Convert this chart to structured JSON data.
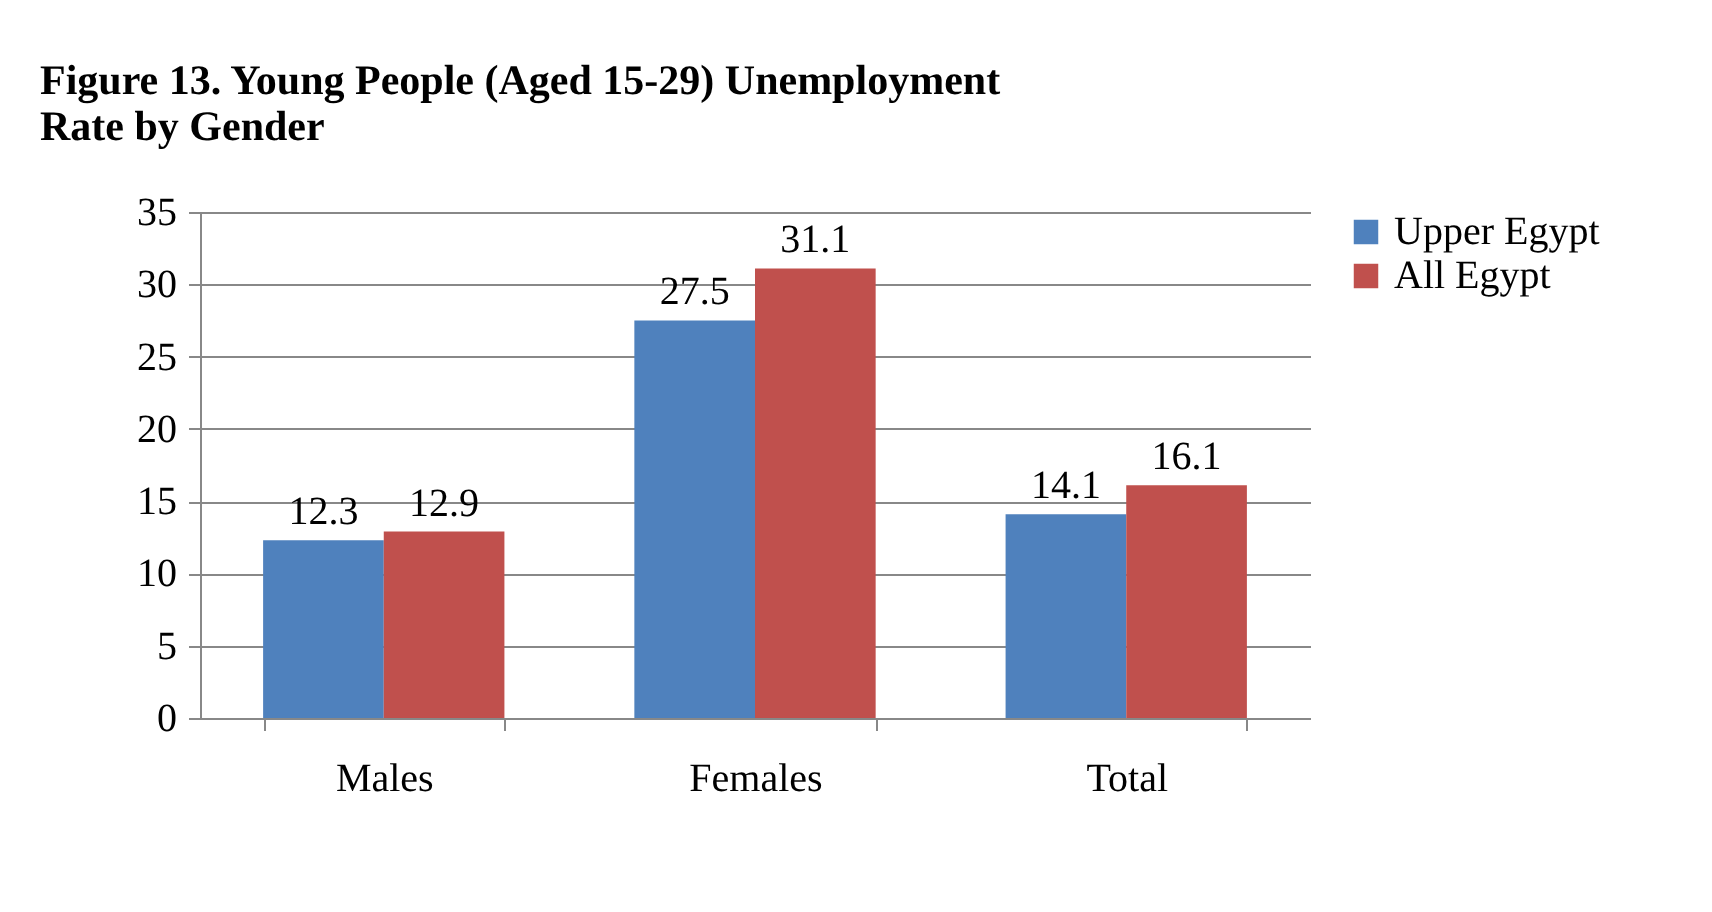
{
  "chart_data": {
    "type": "bar",
    "title": "Figure 13. Young People (Aged 15-29) Unemployment Rate by Gender",
    "categories": [
      "Males",
      "Females",
      "Total"
    ],
    "series": [
      {
        "name": "Upper Egypt",
        "color": "#4f81bd",
        "values": [
          12.3,
          27.5,
          14.1
        ]
      },
      {
        "name": "All Egypt",
        "color": "#c0504d",
        "values": [
          12.9,
          31.1,
          16.1
        ]
      }
    ],
    "ylim": [
      0,
      35
    ],
    "yticks": [
      0,
      5,
      10,
      15,
      20,
      25,
      30,
      35
    ],
    "grid": "y",
    "legend": "right",
    "data_labels": true
  }
}
